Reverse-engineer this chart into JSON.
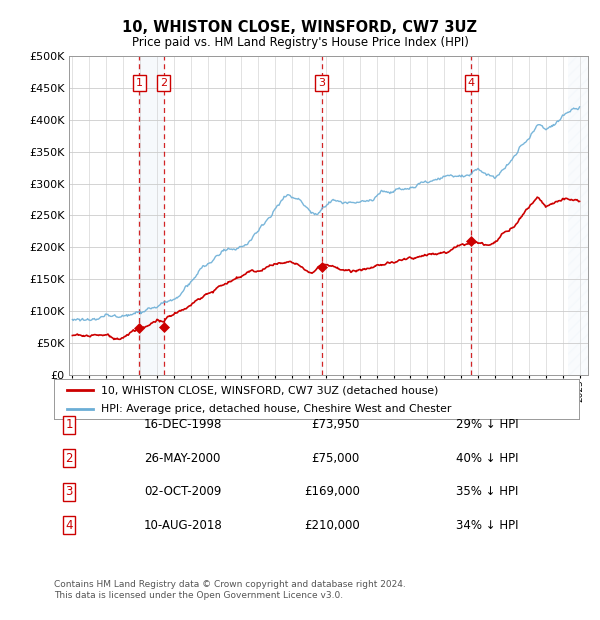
{
  "title": "10, WHISTON CLOSE, WINSFORD, CW7 3UZ",
  "subtitle": "Price paid vs. HM Land Registry's House Price Index (HPI)",
  "ylim": [
    0,
    500000
  ],
  "yticks": [
    0,
    50000,
    100000,
    150000,
    200000,
    250000,
    300000,
    350000,
    400000,
    450000,
    500000
  ],
  "hpi_color": "#6baed6",
  "price_color": "#cc0000",
  "background_color": "#ffffff",
  "grid_color": "#cccccc",
  "transaction_color": "#cc0000",
  "vspan_color": "#dce9f5",
  "hatch_color": "#cccccc",
  "transactions": [
    {
      "num": "1",
      "date_x": 1998.96,
      "price": 73950
    },
    {
      "num": "2",
      "date_x": 2000.4,
      "price": 75000
    },
    {
      "num": "3",
      "date_x": 2009.75,
      "price": 169000
    },
    {
      "num": "4",
      "date_x": 2018.6,
      "price": 210000
    }
  ],
  "legend_items": [
    {
      "label": "10, WHISTON CLOSE, WINSFORD, CW7 3UZ (detached house)",
      "color": "#cc0000"
    },
    {
      "label": "HPI: Average price, detached house, Cheshire West and Chester",
      "color": "#6baed6"
    }
  ],
  "table_rows": [
    {
      "num": "1",
      "date": "16-DEC-1998",
      "price": "£73,950",
      "hpi": "29% ↓ HPI"
    },
    {
      "num": "2",
      "date": "26-MAY-2000",
      "price": "£75,000",
      "hpi": "40% ↓ HPI"
    },
    {
      "num": "3",
      "date": "02-OCT-2009",
      "price": "£169,000",
      "hpi": "35% ↓ HPI"
    },
    {
      "num": "4",
      "date": "10-AUG-2018",
      "price": "£210,000",
      "hpi": "34% ↓ HPI"
    }
  ],
  "footnote": "Contains HM Land Registry data © Crown copyright and database right 2024.\nThis data is licensed under the Open Government Licence v3.0.",
  "xmin": 1994.8,
  "xmax": 2025.5
}
